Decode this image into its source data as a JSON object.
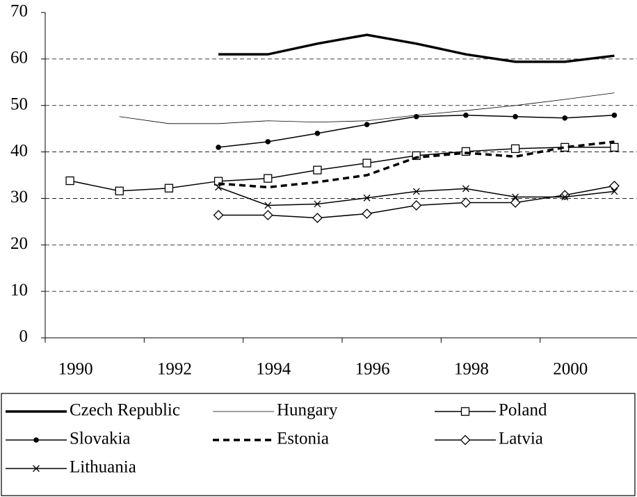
{
  "chart_data": {
    "type": "line",
    "categories": [
      "1990",
      null,
      "1992",
      null,
      "1994",
      null,
      "1996",
      null,
      "1998",
      null,
      "2000",
      null
    ],
    "ylim": [
      0,
      70
    ],
    "yticks": [
      0,
      10,
      20,
      30,
      40,
      50,
      60,
      70
    ],
    "grid": true,
    "series": [
      {
        "name": "Czech Republic",
        "color": "#000000",
        "width": 3.5,
        "dash": false,
        "marker": "none",
        "values": [
          null,
          null,
          null,
          61,
          61,
          63.3,
          65.2,
          63.3,
          61,
          59.4,
          59.4,
          60.7
        ]
      },
      {
        "name": "Hungary",
        "color": "#000000",
        "width": 0.8,
        "dash": false,
        "marker": "none",
        "values": [
          null,
          47.6,
          46.1,
          46.1,
          46.7,
          46.4,
          46.7,
          47.9,
          48.9,
          50,
          51.3,
          52.7
        ]
      },
      {
        "name": "Poland",
        "color": "#000000",
        "width": 1.5,
        "dash": false,
        "marker": "square",
        "values": [
          33.8,
          31.6,
          32.2,
          33.7,
          34.3,
          36.1,
          37.6,
          39.2,
          40.1,
          40.7,
          41,
          41
        ]
      },
      {
        "name": "Slovakia",
        "color": "#000000",
        "width": 1.5,
        "dash": false,
        "marker": "dot",
        "values": [
          null,
          null,
          null,
          41,
          42.2,
          44,
          45.9,
          47.6,
          47.9,
          47.6,
          47.3,
          47.9
        ]
      },
      {
        "name": "Estonia",
        "color": "#000000",
        "width": 3.5,
        "dash": true,
        "marker": "none",
        "values": [
          null,
          null,
          null,
          33.2,
          32.4,
          33.5,
          35,
          38.8,
          39.8,
          39,
          41,
          42.2
        ]
      },
      {
        "name": "Latvia",
        "color": "#000000",
        "width": 1.5,
        "dash": false,
        "marker": "diamond",
        "values": [
          null,
          null,
          null,
          26.4,
          26.4,
          25.8,
          26.7,
          28.5,
          29.1,
          29.1,
          30.7,
          32.7
        ]
      },
      {
        "name": "Lithuania",
        "color": "#000000",
        "width": 1.5,
        "dash": false,
        "marker": "cross",
        "values": [
          null,
          null,
          null,
          32.4,
          28.5,
          28.8,
          30.1,
          31.5,
          32.1,
          30.3,
          30.3,
          31.5
        ]
      }
    ]
  }
}
